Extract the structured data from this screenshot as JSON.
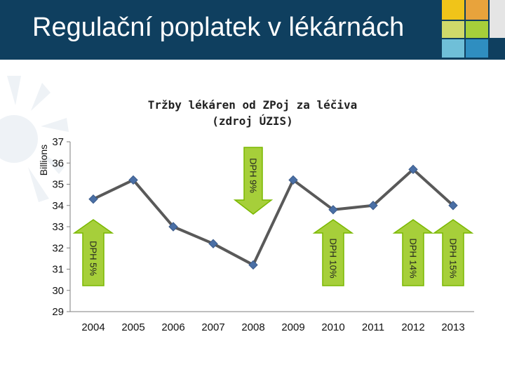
{
  "slide": {
    "title": "Regulační poplatek v lékárnách"
  },
  "colors": {
    "title_bar": "#0f3f5f",
    "line": "#595959",
    "marker": "#4a6fa5",
    "arrow_up": "#7ab800",
    "arrow_down": "#7ab800",
    "arrow_fill": "#a6cf3a"
  },
  "chart_data": {
    "type": "line",
    "title_line1": "Tržby lékáren od ZPoj za léčiva",
    "title_line2": "(zdroj ÚZIS)",
    "ylabel": "Billions",
    "xlabel": "",
    "ylim": [
      29,
      37
    ],
    "yticks": [
      29,
      30,
      31,
      32,
      33,
      34,
      35,
      36,
      37
    ],
    "categories": [
      "2004",
      "2005",
      "2006",
      "2007",
      "2008",
      "2009",
      "2010",
      "2011",
      "2012",
      "2013"
    ],
    "values": [
      34.3,
      35.2,
      33.0,
      32.2,
      31.2,
      35.2,
      33.8,
      34.0,
      35.7,
      34.0
    ],
    "grid": false,
    "legend": "none",
    "annotations": [
      {
        "label": "DPH 5%",
        "direction": "up",
        "x": "2004"
      },
      {
        "label": "DPH 9%",
        "direction": "down",
        "x": "2008"
      },
      {
        "label": "DPH 10%",
        "direction": "up",
        "x": "2010"
      },
      {
        "label": "DPH 14%",
        "direction": "up",
        "x": "2012"
      },
      {
        "label": "DPH 15%",
        "direction": "up",
        "x": "2013"
      }
    ]
  }
}
